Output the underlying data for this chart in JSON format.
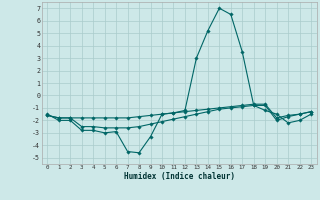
{
  "xlabel": "Humidex (Indice chaleur)",
  "background_color": "#cde8e8",
  "grid_color": "#aacccc",
  "line_color": "#006666",
  "xlim": [
    -0.5,
    23.5
  ],
  "ylim": [
    -5.5,
    7.5
  ],
  "yticks": [
    -5,
    -4,
    -3,
    -2,
    -1,
    0,
    1,
    2,
    3,
    4,
    5,
    6,
    7
  ],
  "xticks": [
    0,
    1,
    2,
    3,
    4,
    5,
    6,
    7,
    8,
    9,
    10,
    11,
    12,
    13,
    14,
    15,
    16,
    17,
    18,
    19,
    20,
    21,
    22,
    23
  ],
  "line1_x": [
    0,
    1,
    2,
    3,
    4,
    5,
    6,
    7,
    8,
    9,
    10,
    11,
    12,
    13,
    14,
    15,
    16,
    17,
    18,
    19,
    20,
    21,
    22,
    23
  ],
  "line1_y": [
    -1.5,
    -2.0,
    -2.0,
    -2.8,
    -2.8,
    -3.0,
    -2.9,
    -4.5,
    -4.6,
    -3.3,
    -1.5,
    -1.4,
    -1.2,
    3.0,
    5.2,
    7.0,
    6.5,
    3.5,
    -0.8,
    -1.2,
    -1.5,
    -2.2,
    -2.0,
    -1.5
  ],
  "line2_x": [
    0,
    1,
    2,
    3,
    4,
    5,
    6,
    7,
    8,
    9,
    10,
    11,
    12,
    13,
    14,
    15,
    16,
    17,
    18,
    19,
    20,
    21,
    22,
    23
  ],
  "line2_y": [
    -1.6,
    -1.8,
    -1.8,
    -1.8,
    -1.8,
    -1.8,
    -1.8,
    -1.8,
    -1.7,
    -1.6,
    -1.5,
    -1.4,
    -1.3,
    -1.2,
    -1.1,
    -1.0,
    -0.9,
    -0.8,
    -0.7,
    -0.7,
    -1.8,
    -1.6,
    -1.5,
    -1.3
  ],
  "line3_x": [
    0,
    1,
    2,
    3,
    4,
    5,
    6,
    7,
    8,
    9,
    10,
    11,
    12,
    13,
    14,
    15,
    16,
    17,
    18,
    19,
    20,
    21,
    22,
    23
  ],
  "line3_y": [
    -1.6,
    -1.8,
    -1.8,
    -2.5,
    -2.5,
    -2.6,
    -2.6,
    -2.6,
    -2.5,
    -2.3,
    -2.1,
    -1.9,
    -1.7,
    -1.5,
    -1.3,
    -1.1,
    -1.0,
    -0.9,
    -0.8,
    -0.8,
    -2.0,
    -1.7,
    -1.5,
    -1.3
  ]
}
